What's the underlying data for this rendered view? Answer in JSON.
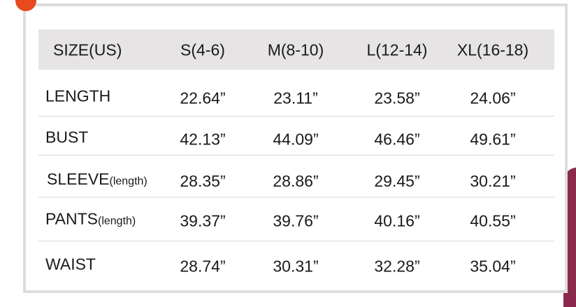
{
  "table": {
    "header": [
      "SIZE(US)",
      "S(4-6)",
      "M(8-10)",
      "L(12-14)",
      "XL(16-18)"
    ],
    "rows": [
      {
        "label": "LENGTH",
        "values": [
          "22.64”",
          "23.11”",
          "23.58”",
          "24.06”"
        ]
      },
      {
        "label": "BUST",
        "values": [
          "42.13”",
          "44.09”",
          "46.46”",
          "49.61”"
        ]
      },
      {
        "label": "SLEEVE",
        "label_note": "(length)",
        "values": [
          "28.35”",
          "28.86”",
          "29.45”",
          "30.21”"
        ]
      },
      {
        "label": "PANTS",
        "label_note": "(length)",
        "values": [
          "39.37”",
          "39.76”",
          "40.16”",
          "40.55”"
        ]
      },
      {
        "label": "WAIST",
        "values": [
          "28.74”",
          "30.31”",
          "32.28”",
          "35.04”"
        ]
      }
    ]
  }
}
